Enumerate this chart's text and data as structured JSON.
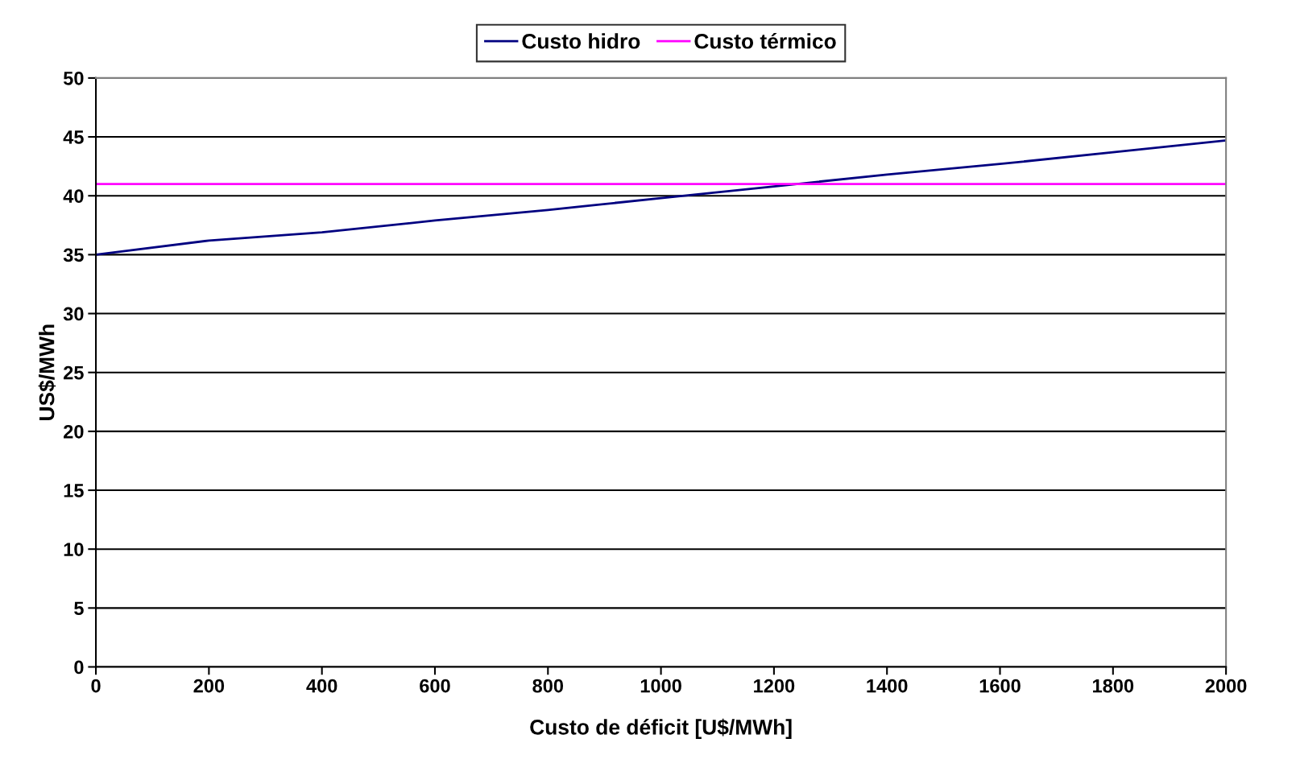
{
  "chart_data": {
    "type": "line",
    "xlabel": "Custo de déficit [U$/MWh]",
    "ylabel": "US$/MWh",
    "x": [
      0,
      200,
      400,
      600,
      800,
      1000,
      1200,
      1400,
      1600,
      1800,
      2000
    ],
    "series": [
      {
        "name": "Custo hidro",
        "color": "#000080",
        "values": [
          35,
          36.2,
          36.9,
          37.9,
          38.8,
          39.8,
          40.8,
          41.8,
          42.7,
          43.7,
          44.7
        ]
      },
      {
        "name": "Custo térmico",
        "color": "#ff00ff",
        "values": [
          41,
          41,
          41,
          41,
          41,
          41,
          41,
          41,
          41,
          41,
          41
        ]
      }
    ],
    "xlim": [
      0,
      2000
    ],
    "xticks": [
      0,
      200,
      400,
      600,
      800,
      1000,
      1200,
      1400,
      1600,
      1800,
      2000
    ],
    "ylim": [
      0,
      50
    ],
    "yticks": [
      0,
      5,
      10,
      15,
      20,
      25,
      30,
      35,
      40,
      45,
      50
    ],
    "grid": "y",
    "legend": "top",
    "marker": "none",
    "line_style": "solid"
  }
}
